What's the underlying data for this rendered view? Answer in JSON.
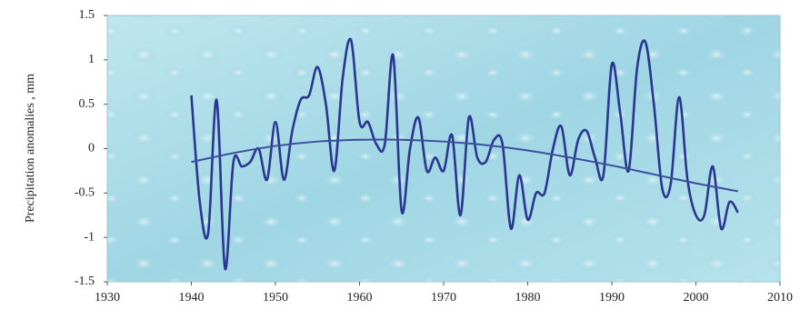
{
  "chart_data": {
    "type": "line",
    "y_label": "Precipitation anomalies , mm",
    "xlim": [
      1930,
      2010
    ],
    "xticks": [
      1930,
      1940,
      1950,
      1960,
      1970,
      1980,
      1990,
      2000,
      2010
    ],
    "ylim": [
      -1.5,
      1.5
    ],
    "yticks": [
      -1.5,
      -1,
      -0.5,
      0,
      0.5,
      1,
      1.5
    ],
    "series": [
      {
        "color": "#2b3690",
        "x": [
          1940,
          1941,
          1942,
          1943,
          1944,
          1945,
          1946,
          1947,
          1948,
          1949,
          1950,
          1951,
          1952,
          1953,
          1954,
          1955,
          1956,
          1957,
          1958,
          1959,
          1960,
          1961,
          1962,
          1963,
          1964,
          1965,
          1966,
          1967,
          1968,
          1969,
          1970,
          1971,
          1972,
          1973,
          1974,
          1975,
          1976,
          1977,
          1978,
          1979,
          1980,
          1981,
          1982,
          1983,
          1984,
          1985,
          1986,
          1987,
          1988,
          1989,
          1990,
          1991,
          1992,
          1993,
          1994,
          1995,
          1996,
          1997,
          1998,
          1999,
          2000,
          2001,
          2002,
          2003,
          2004,
          2005
        ],
        "values": [
          0.6,
          -0.6,
          -0.95,
          0.55,
          -1.35,
          -0.15,
          -0.2,
          -0.15,
          0.0,
          -0.35,
          0.3,
          -0.35,
          0.2,
          0.55,
          0.6,
          0.92,
          0.5,
          -0.25,
          0.8,
          1.22,
          0.3,
          0.3,
          0.05,
          0.05,
          1.05,
          -0.7,
          0.0,
          0.35,
          -0.25,
          -0.1,
          -0.25,
          0.15,
          -0.75,
          0.35,
          -0.1,
          -0.15,
          0.1,
          0.05,
          -0.9,
          -0.3,
          -0.8,
          -0.5,
          -0.5,
          0.0,
          0.25,
          -0.3,
          0.1,
          0.2,
          -0.1,
          -0.3,
          0.95,
          0.4,
          -0.25,
          0.9,
          1.2,
          0.5,
          -0.45,
          -0.4,
          0.58,
          -0.35,
          -0.75,
          -0.75,
          -0.2,
          -0.9,
          -0.6,
          -0.72
        ]
      },
      {
        "color": "#3b4f9c",
        "x": [
          1940,
          1945,
          1950,
          1955,
          1960,
          1965,
          1970,
          1975,
          1980,
          1985,
          1990,
          1995,
          2000,
          2005
        ],
        "values": [
          -0.15,
          -0.05,
          0.03,
          0.08,
          0.1,
          0.1,
          0.08,
          0.04,
          -0.02,
          -0.1,
          -0.19,
          -0.29,
          -0.39,
          -0.48
        ]
      }
    ]
  }
}
